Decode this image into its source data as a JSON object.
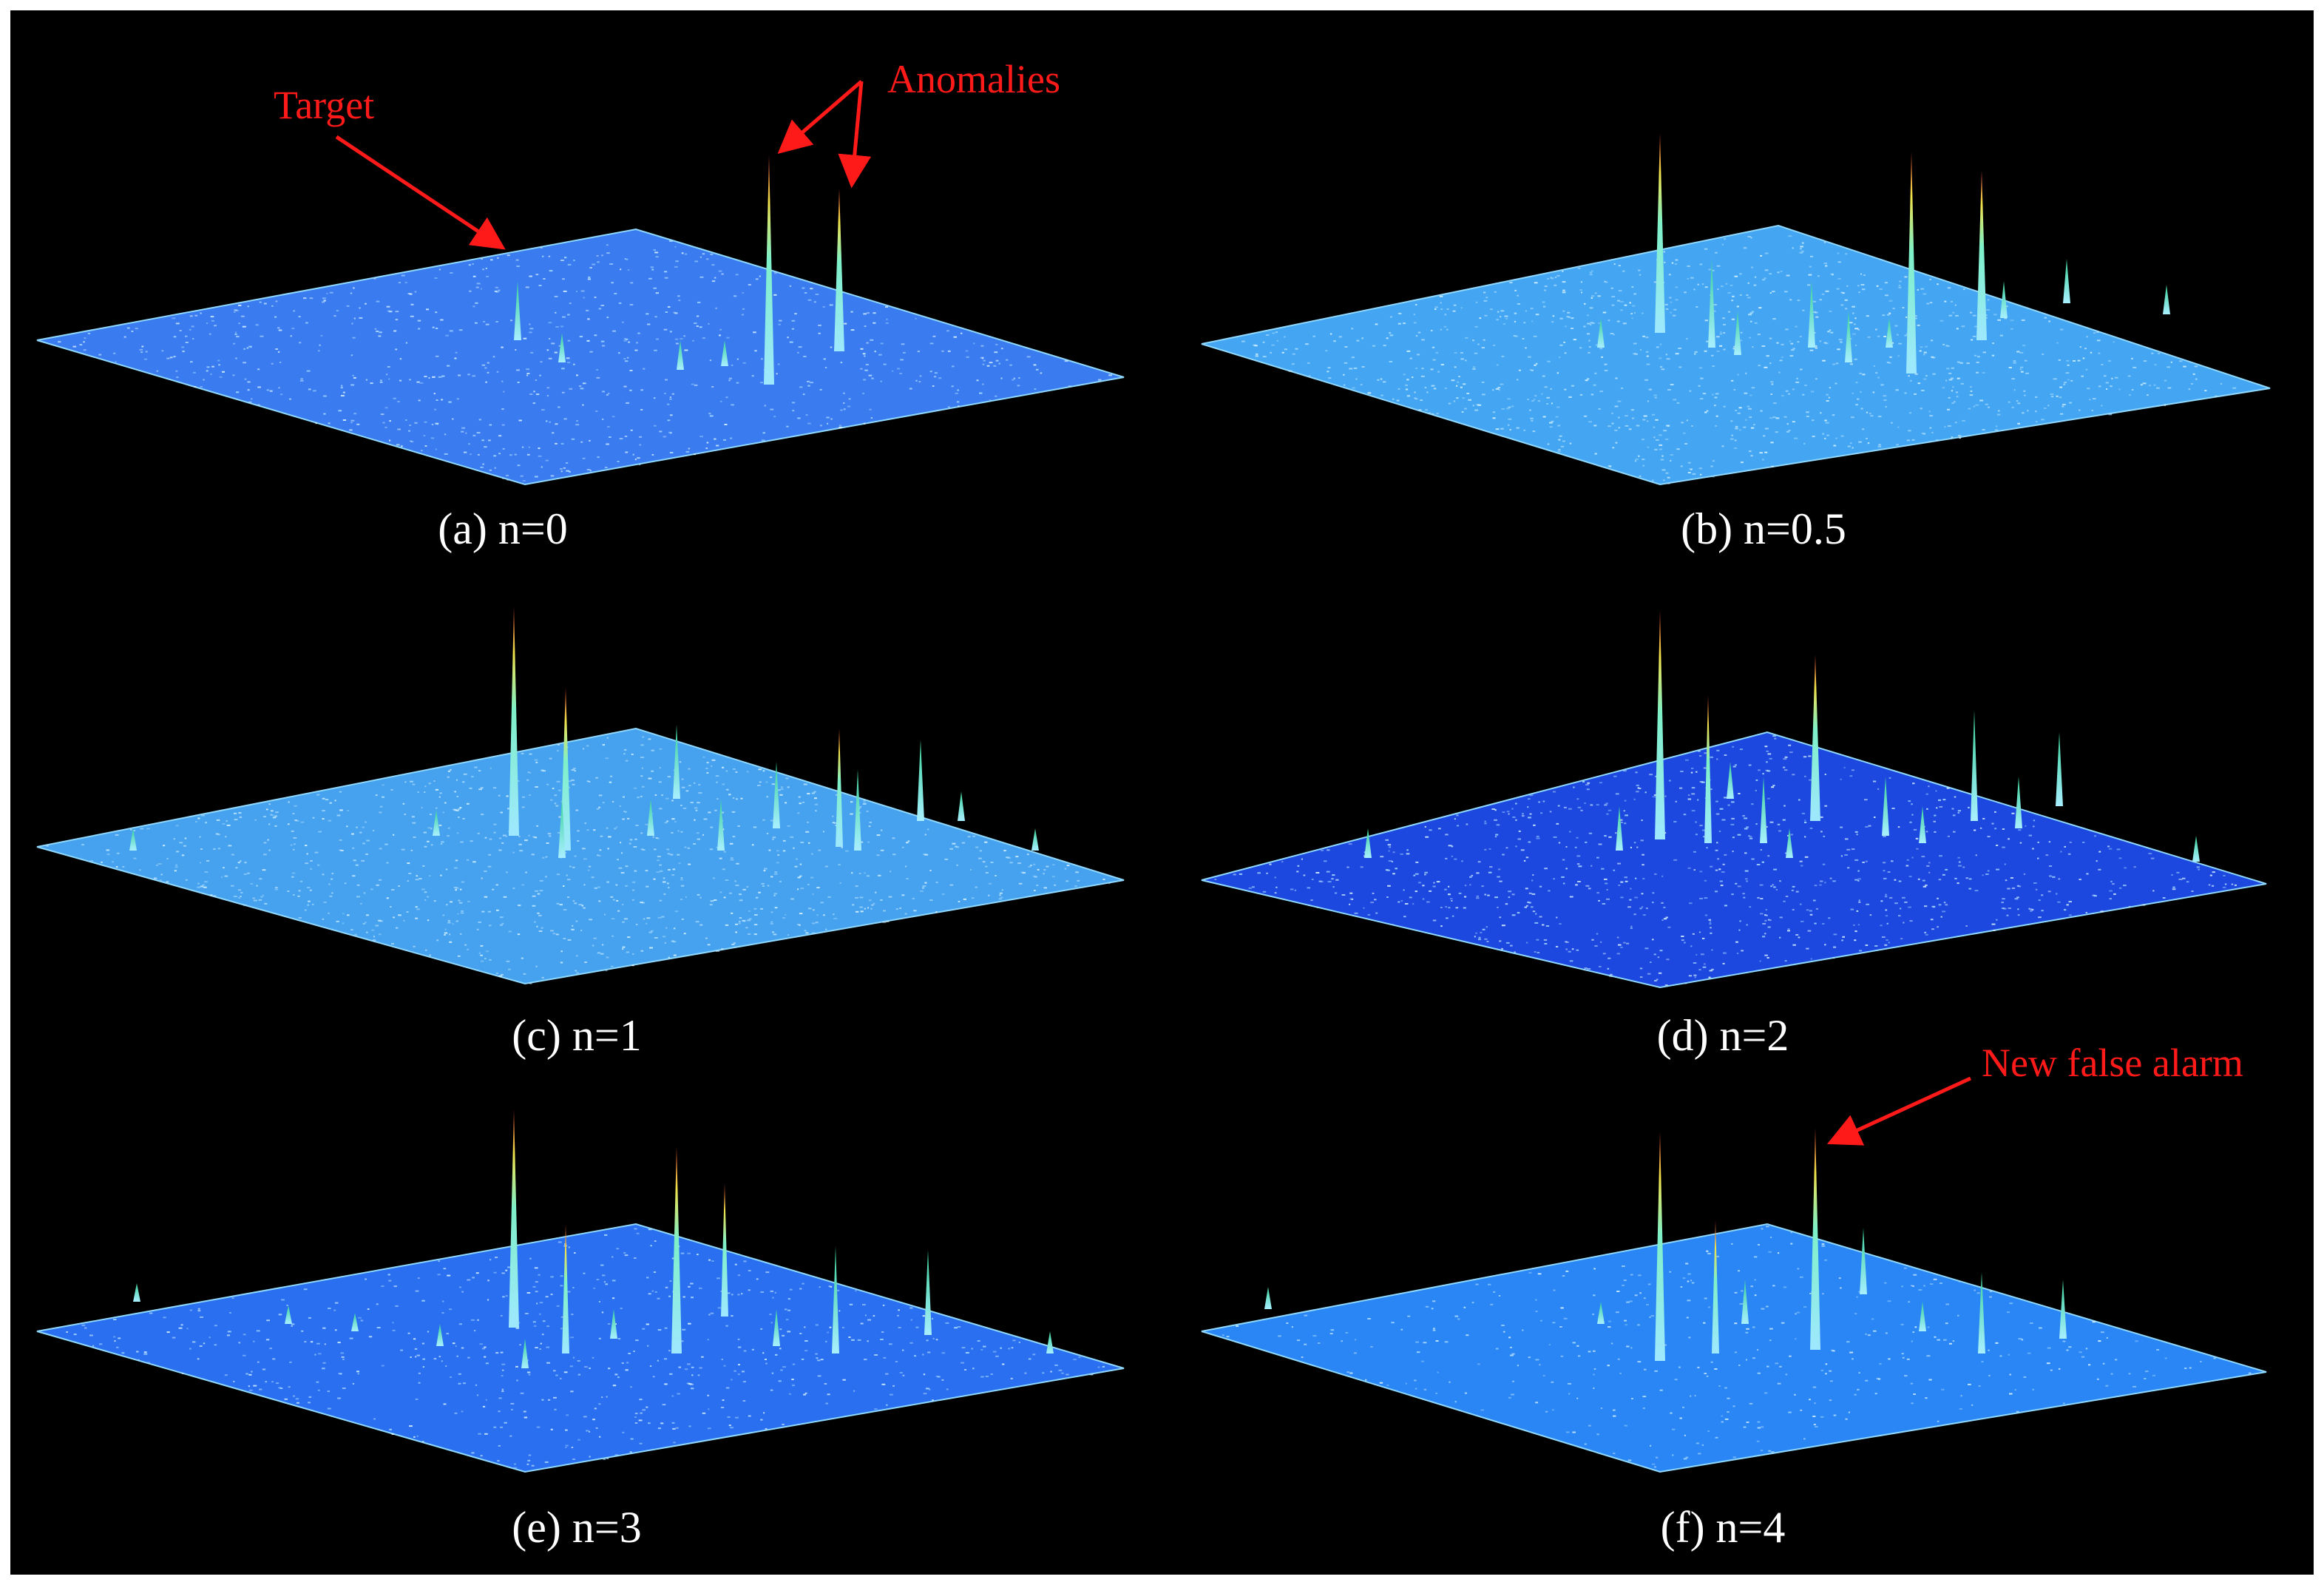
{
  "panels": [
    {
      "id": "a",
      "caption": "(a) n=0",
      "surface_color": "#3a7bf0",
      "speckle": 0.55,
      "spike_count": 6
    },
    {
      "id": "b",
      "caption": "(b) n=0.5",
      "surface_color": "#44a6f2",
      "speckle": 0.75,
      "spike_count": 12
    },
    {
      "id": "c",
      "caption": "(c) n=1",
      "surface_color": "#46a2ee",
      "speckle": 0.75,
      "spike_count": 14
    },
    {
      "id": "d",
      "caption": "(d) n=2",
      "surface_color": "#1c48e0",
      "speckle": 0.65,
      "spike_count": 14
    },
    {
      "id": "e",
      "caption": "(e) n=3",
      "surface_color": "#2a6ff0",
      "speckle": 0.45,
      "spike_count": 14
    },
    {
      "id": "f",
      "caption": "(f) n=4",
      "surface_color": "#2a86f4",
      "speckle": 0.3,
      "spike_count": 10
    }
  ],
  "annotations": {
    "target": "Target",
    "anomalies": "Anomalies",
    "new_false_alarm": "New false alarm"
  },
  "colors": {
    "background": "#000000",
    "annotation": "#ff1a1a",
    "caption": "#ffffff",
    "spike_tip": "#d23a2a",
    "spike_mid": "#f2e24a",
    "spike_base": "#9fe8ff"
  }
}
